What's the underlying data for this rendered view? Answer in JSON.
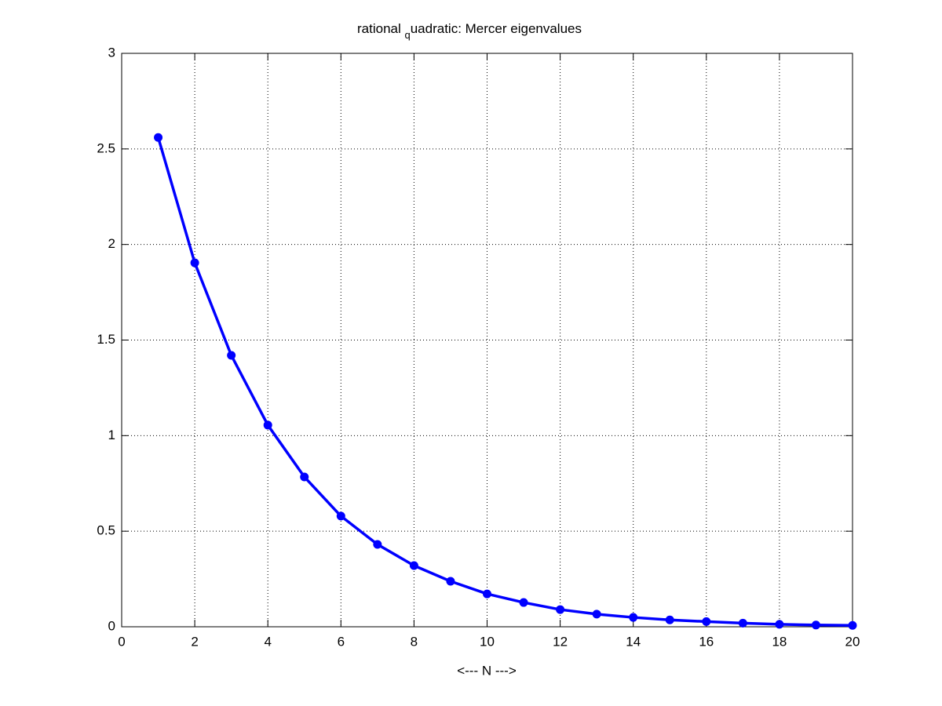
{
  "chart_data": {
    "type": "line",
    "title": [
      "rational ",
      "q",
      "uadratic: Mercer eigenvalues"
    ],
    "xlabel": "<--- N --->",
    "x": [
      1,
      2,
      3,
      4,
      5,
      6,
      7,
      8,
      9,
      10,
      11,
      12,
      13,
      14,
      15,
      16,
      17,
      18,
      19,
      20
    ],
    "values": [
      2.56,
      1.904,
      1.42,
      1.055,
      0.784,
      0.579,
      0.431,
      0.32,
      0.238,
      0.172,
      0.127,
      0.09,
      0.066,
      0.049,
      0.036,
      0.027,
      0.019,
      0.013,
      0.009,
      0.007
    ],
    "color": "#0000ff",
    "xlim": [
      0,
      20
    ],
    "xticks": [
      0,
      2,
      4,
      6,
      8,
      10,
      12,
      14,
      16,
      18,
      20
    ],
    "ylim": [
      0,
      3
    ],
    "yticks": [
      0,
      0.5,
      1,
      1.5,
      2,
      2.5,
      3
    ],
    "grid": true
  }
}
